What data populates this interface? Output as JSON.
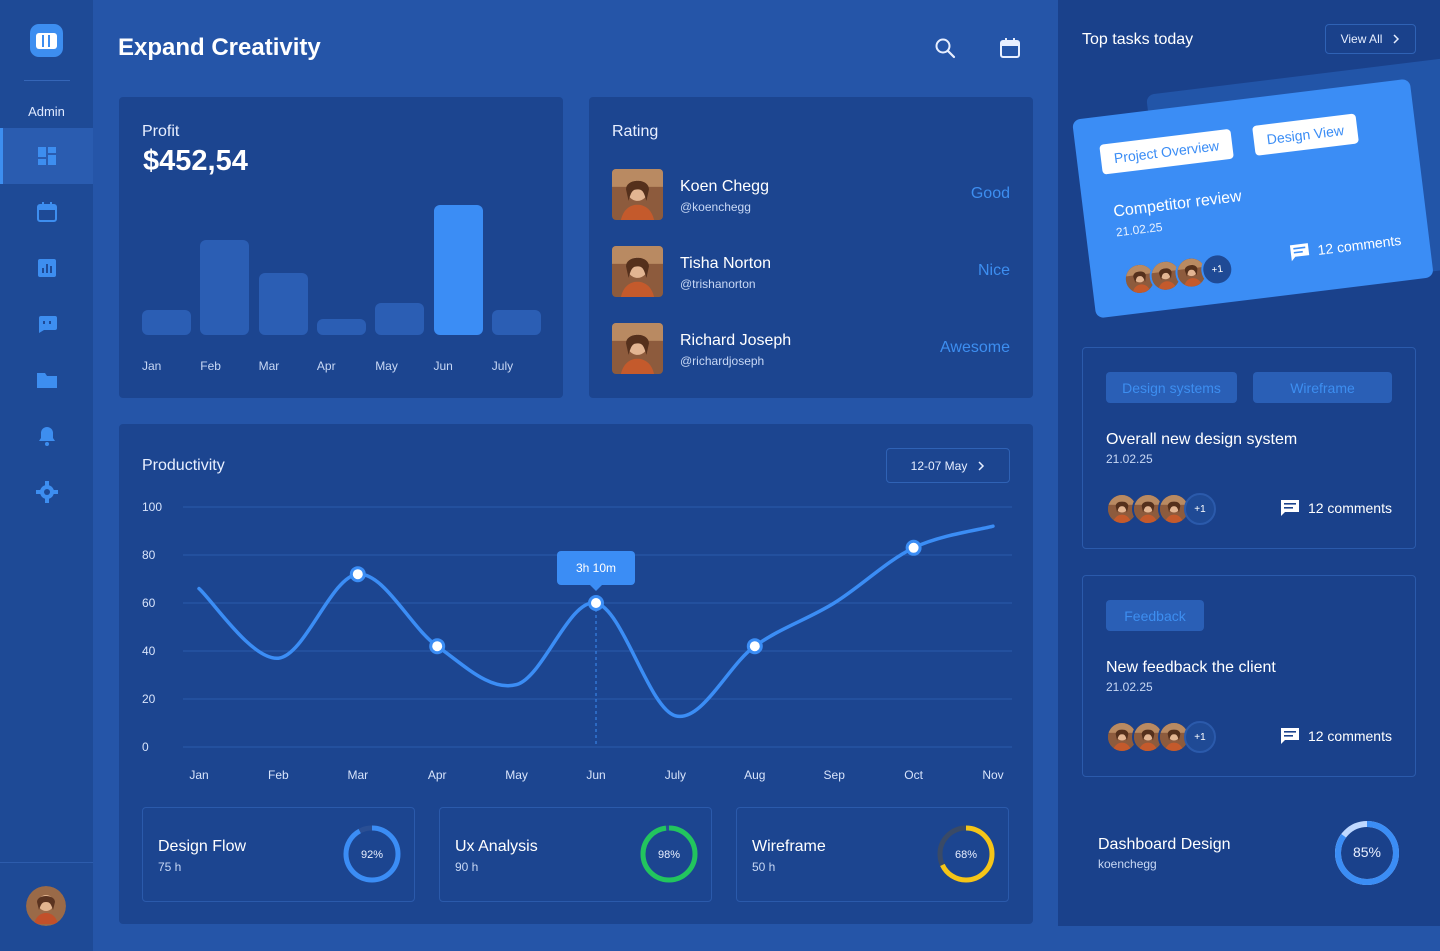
{
  "sidebar": {
    "admin_label": "Admin",
    "nav_icons": [
      "dashboard-icon",
      "calendar-icon",
      "chart-icon",
      "chat-icon",
      "folder-icon",
      "bell-icon",
      "gear-icon"
    ],
    "active_index": 0
  },
  "header": {
    "title": "Expand Creativity",
    "icons": [
      "search-icon",
      "calendar-icon"
    ]
  },
  "profit": {
    "label": "Profit",
    "value": "$452,54",
    "months": [
      "Jan",
      "Feb",
      "Mar",
      "Apr",
      "May",
      "Jun",
      "July"
    ],
    "bar_levels": [
      0.19,
      0.73,
      0.48,
      0.12,
      0.25,
      1.0,
      0.19
    ],
    "highlight_index": 5
  },
  "rating": {
    "title": "Rating",
    "rows": [
      {
        "name": "Koen Chegg",
        "handle": "@koenchegg",
        "label": "Good"
      },
      {
        "name": "Tisha Norton",
        "handle": "@trishanorton",
        "label": "Nice"
      },
      {
        "name": "Richard Joseph",
        "handle": "@richardjoseph",
        "label": "Awesome"
      }
    ]
  },
  "productivity": {
    "title": "Productivity",
    "range_label": "12-07 May",
    "tooltip": "3h 10m",
    "chart_data": {
      "type": "line",
      "x": [
        "Jan",
        "Feb",
        "Mar",
        "Apr",
        "May",
        "Jun",
        "July",
        "Aug",
        "Sep",
        "Oct",
        "Nov"
      ],
      "y_ticks": [
        "100",
        "80",
        "60",
        "40",
        "20",
        "0"
      ],
      "ylim": [
        0,
        100
      ],
      "series": [
        {
          "values": [
            66,
            37,
            72,
            42,
            26,
            60,
            13,
            42,
            60,
            83,
            92
          ]
        }
      ],
      "marked_points": [
        2,
        3,
        5,
        7,
        9
      ],
      "tooltip_index": 5
    }
  },
  "stats": [
    {
      "title": "Design Flow",
      "sub": "75 h",
      "percent_label": "92%",
      "percent": 92,
      "color": "#3b8df5"
    },
    {
      "title": "Ux Analysis",
      "sub": "90 h",
      "percent_label": "98%",
      "percent": 98,
      "color": "#22c55e"
    },
    {
      "title": "Wireframe",
      "sub": "50 h",
      "percent_label": "68%",
      "percent": 68,
      "color": "#f5c518"
    }
  ],
  "tasks": {
    "title": "Top tasks today",
    "view_all": "View All",
    "featured": {
      "tags": [
        "Project Overview",
        "Design View"
      ],
      "title": "Competitor review",
      "date": "21.02.25",
      "more": "+1",
      "comments": "12 comments"
    },
    "items": [
      {
        "tags": [
          "Design systems",
          "Wireframe"
        ],
        "title": "Overall new design system",
        "date": "21.02.25",
        "more": "+1",
        "comments": "12 comments"
      },
      {
        "tags": [
          "Feedback"
        ],
        "title": "New feedback the client",
        "date": "21.02.25",
        "more": "+1",
        "comments": "12 comments"
      }
    ],
    "footer": {
      "title": "Dashboard Design",
      "sub": "koenchegg",
      "percent_label": "85%",
      "percent": 85
    }
  }
}
